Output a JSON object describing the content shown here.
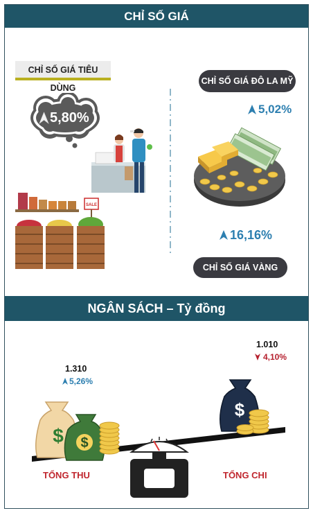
{
  "price_index": {
    "header": "CHỈ SỐ GIÁ",
    "cpi": {
      "label": "CHỈ SỐ GIÁ TIÊU DÙNG",
      "value": "5,80%",
      "trend": "up"
    },
    "usd": {
      "label": "CHỈ SỐ GIÁ ĐÔ LA MỸ",
      "value": "5,02%",
      "trend": "up"
    },
    "gold": {
      "label": "CHỈ SỐ GIÁ VÀNG",
      "value": "16,16%",
      "trend": "up"
    }
  },
  "budget": {
    "header": "NGÂN SÁCH – Tỷ đồng",
    "revenue": {
      "label": "TỔNG THU",
      "amount": "1.310",
      "change": "5,26%",
      "trend": "up"
    },
    "spending": {
      "label": "TỔNG CHI",
      "amount": "1.010",
      "change": "4,10%",
      "trend": "down"
    }
  },
  "colors": {
    "header_bar": "#1f5567",
    "value_blue": "#2d7fb0",
    "value_red": "#b51f2d",
    "pill_dark": "#3a3a40",
    "gold": "#e9b22e"
  }
}
